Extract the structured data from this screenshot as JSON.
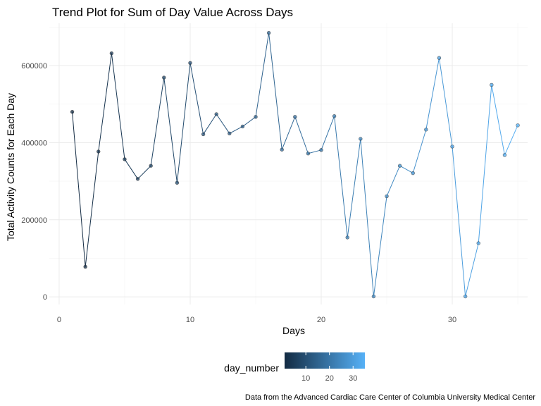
{
  "chart_data": {
    "type": "line",
    "title": "Trend Plot for Sum of Day Value Across Days",
    "xlabel": "Days",
    "ylabel": "Total Activity Counts for Each Day",
    "caption": "Data from the Advanced Cardiac Care Center of Columbia University Medical Center",
    "xlim": [
      -0.75,
      35.75
    ],
    "ylim": [
      -20000,
      710000
    ],
    "x_ticks": [
      0,
      10,
      20,
      30
    ],
    "x_tick_labels": [
      "0",
      "10",
      "20",
      "30"
    ],
    "y_ticks": [
      0,
      200000,
      400000,
      600000
    ],
    "y_tick_labels": [
      "0",
      "200000",
      "400000",
      "600000"
    ],
    "grid": true,
    "legend": {
      "title": "day_number",
      "position": "bottom",
      "type": "colorbar",
      "range": [
        1,
        35
      ],
      "ticks": [
        10,
        20,
        30
      ],
      "tick_labels": [
        "10",
        "20",
        "30"
      ],
      "color_low": "#132B43",
      "color_high": "#56B1F7"
    },
    "series": [
      {
        "x": [
          1,
          2,
          3,
          4,
          5,
          6,
          7,
          8,
          9,
          10,
          11,
          12,
          13,
          14,
          15,
          16,
          17,
          18,
          19,
          20,
          21,
          22,
          23,
          24,
          25,
          26,
          27,
          28,
          29,
          30,
          31,
          32,
          33,
          34,
          35
        ],
        "y": [
          480000,
          78000,
          377000,
          632000,
          357000,
          306000,
          340000,
          569000,
          296000,
          607000,
          422000,
          474000,
          424000,
          442000,
          467000,
          685000,
          382000,
          467000,
          372000,
          381000,
          469000,
          154000,
          410000,
          1000,
          261000,
          340000,
          321000,
          434000,
          620000,
          390000,
          1000,
          139000,
          550000,
          368000,
          445000
        ]
      }
    ]
  }
}
